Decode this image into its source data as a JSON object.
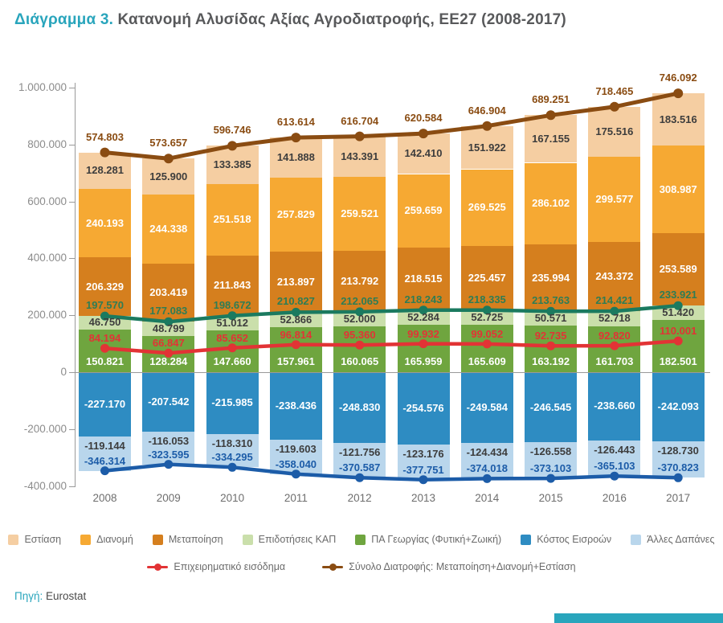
{
  "title": {
    "prefix": "Διάγραμμα 3.",
    "text": " Κατανομή Αλυσίδας Αξίας Αγροδιατροφής, ΕΕ27 (2008-2017)"
  },
  "source": {
    "label": "Πηγή:",
    "value": " Eurostat"
  },
  "theme": {
    "accent": "#29a5bc",
    "title_gray": "#58595b",
    "axis_gray": "#8c8c8c"
  },
  "chart_data": {
    "type": "bar",
    "subtype": "stacked-bar-with-lines",
    "title": "Διάγραμμα 3. Κατανομή Αλυσίδας Αξίας Αγροδιατροφής, ΕΕ27 (2008-2017)",
    "categories": [
      "2008",
      "2009",
      "2010",
      "2011",
      "2012",
      "2013",
      "2014",
      "2015",
      "2016",
      "2017"
    ],
    "y_axis": {
      "ticks": [
        "1.000.000",
        "800.000",
        "600.000",
        "400.000",
        "200.000",
        "0",
        "-200.000",
        "-400.000"
      ],
      "min": -400000,
      "max": 1000000,
      "grid": false
    },
    "bar_series": [
      {
        "id": "estiasi",
        "name": "Εστίαση",
        "color": "#f5cea2",
        "label_color": "#3d3d3d",
        "labels": [
          "128.281",
          "125.900",
          "133.385",
          "141.888",
          "143.391",
          "142.410",
          "151.922",
          "167.155",
          "175.516",
          "183.516"
        ]
      },
      {
        "id": "dianomi",
        "name": "Διανομή",
        "color": "#f6a933",
        "label_color": "#ffffff",
        "labels": [
          "240.193",
          "244.338",
          "251.518",
          "257.829",
          "259.521",
          "259.659",
          "269.525",
          "286.102",
          "299.577",
          "308.987"
        ]
      },
      {
        "id": "metapoiisi",
        "name": "Μεταποίηση",
        "color": "#d57f1e",
        "label_color": "#ffffff",
        "labels": [
          "206.329",
          "203.419",
          "211.843",
          "213.897",
          "213.792",
          "218.515",
          "225.457",
          "235.994",
          "243.372",
          "253.589"
        ]
      },
      {
        "id": "epidotiseis-kap",
        "name": "Επιδοτήσεις ΚΑΠ",
        "color": "#cadfab",
        "label_color": "#3d3d3d",
        "labels": [
          "46.750",
          "48.799",
          "51.012",
          "52.866",
          "52.000",
          "52.284",
          "52.725",
          "50.571",
          "52.718",
          "51.420"
        ]
      },
      {
        "id": "pa-georgias",
        "name": "ΠΑ Γεωργίας (Φυτική+Ζωική)",
        "color": "#6fa53f",
        "label_color": "#ffffff",
        "labels": [
          "150.821",
          "128.284",
          "147.660",
          "157.961",
          "160.065",
          "165.959",
          "165.609",
          "163.192",
          "161.703",
          "182.501"
        ]
      },
      {
        "id": "kostos-eisroon",
        "name": "Κόστος Εισροών",
        "color": "#2e8cc2",
        "label_color": "#ffffff",
        "labels": [
          "-227.170",
          "-207.542",
          "-215.985",
          "-238.436",
          "-248.830",
          "-254.576",
          "-249.584",
          "-246.545",
          "-238.660",
          "-242.093"
        ]
      },
      {
        "id": "alles-dapanes",
        "name": "Άλλες Δαπάνες",
        "color": "#b9d6ec",
        "label_color": "#3d3d3d",
        "labels": [
          "-119.144",
          "-116.053",
          "-118.310",
          "-119.603",
          "-121.756",
          "-123.176",
          "-124.434",
          "-126.558",
          "-126.443",
          "-128.730"
        ]
      }
    ],
    "line_series": [
      {
        "id": "epixeirimatiko-eisodima",
        "legend_label": "Επιχειρηματικό εισόδημα",
        "color": "#e23335",
        "label_color": "#e23335",
        "in_legend": true,
        "labels": [
          "84.194",
          "66.847",
          "85.652",
          "96.814",
          "95.360",
          "99.932",
          "99.052",
          "92.735",
          "92.820",
          "110.001"
        ]
      },
      {
        "id": "synolo-diatrofis",
        "legend_label": "Σύνολο Διατροφής: Μεταποίηση+Διανομή+Εστίαση",
        "color": "#8a4c12",
        "label_color": "#8a4c12",
        "in_legend": true,
        "plotted_at": "bar-top",
        "labels": [
          "574.803",
          "573.657",
          "596.746",
          "613.614",
          "616.704",
          "620.584",
          "646.904",
          "689.251",
          "718.465",
          "746.092"
        ]
      },
      {
        "id": "sum-pa-plus-kap",
        "legend_label": "",
        "color": "#1b7a5f",
        "label_color": "#2e7d55",
        "in_legend": false,
        "labels": [
          "197.570",
          "177.083",
          "198.672",
          "210.827",
          "212.065",
          "218.243",
          "218.335",
          "213.763",
          "214.421",
          "233.921"
        ]
      },
      {
        "id": "sum-kostos-plus-alles",
        "legend_label": "",
        "color": "#1c5ca8",
        "label_color": "#1c5ca8",
        "in_legend": false,
        "labels": [
          "-346.314",
          "-323.595",
          "-334.295",
          "-358.040",
          "-370.587",
          "-377.751",
          "-374.018",
          "-373.103",
          "-365.103",
          "-370.823"
        ]
      }
    ],
    "legend_position": "bottom"
  }
}
